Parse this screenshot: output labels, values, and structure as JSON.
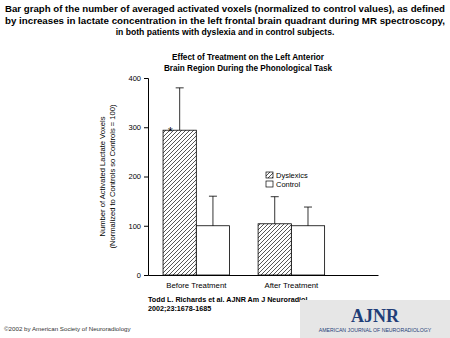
{
  "chart_data": {
    "type": "bar",
    "title": [
      "Effect of Treatment on the Left Anterior",
      "Brain Region During the Phonological Task"
    ],
    "y_label": [
      "Number of Activated Lactate Voxels",
      "(Normalized to Controls so Controls = 100)"
    ],
    "categories": [
      "Before Treatment",
      "After Treatment"
    ],
    "series": [
      {
        "name": "Dyslexics",
        "color": "#444444",
        "marker": "hatch",
        "values": [
          294,
          104
        ],
        "errors": [
          86,
          55
        ]
      },
      {
        "name": "Control",
        "color": "#ffffff",
        "marker": "none",
        "values": [
          100,
          100
        ],
        "errors": [
          60,
          38
        ]
      }
    ],
    "ylim": [
      0,
      400
    ],
    "yticks": [
      0,
      100,
      200,
      300,
      400
    ],
    "legend": "right",
    "annotations": [
      {
        "text": "*",
        "series": 0,
        "category": 0
      }
    ]
  },
  "page": {
    "caption": [
      "Bar graph of the number of averaged activated voxels (normalized to control values), as defined",
      "by increases in lactate concentration in the left frontal brain quadrant during MR spectroscopy,",
      "in both patients with dyslexia and in control subjects."
    ],
    "citation": [
      "Todd L. Richards et al. AJNR Am J Neuroradiol",
      "2002;23:1678-1685"
    ],
    "copyright": "©2002 by American Society of Neuroradiology",
    "logo": "AJNR",
    "logo_subtitle": "AMERICAN JOURNAL OF NEURORADIOLOGY"
  }
}
